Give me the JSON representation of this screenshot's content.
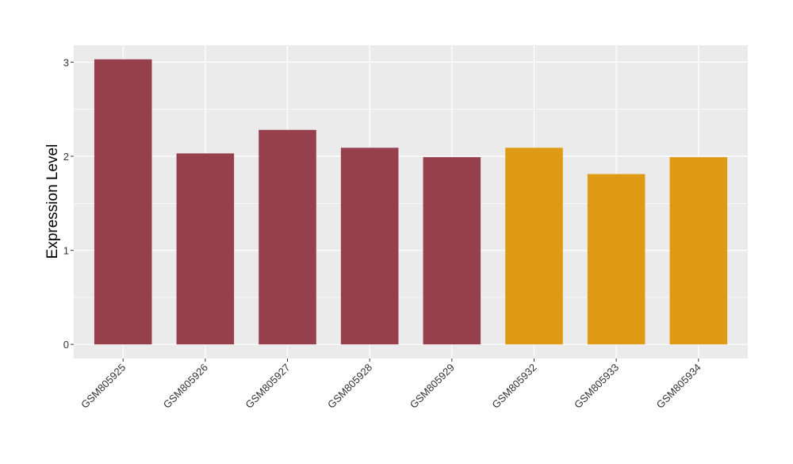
{
  "chart_data": {
    "type": "bar",
    "title": "",
    "xlabel": "",
    "ylabel": "Expression Level",
    "categories": [
      "GSM805925",
      "GSM805926",
      "GSM805927",
      "GSM805928",
      "GSM805929",
      "GSM805932",
      "GSM805933",
      "GSM805934"
    ],
    "values": [
      3.03,
      2.03,
      2.28,
      2.09,
      1.99,
      2.09,
      1.81,
      1.99
    ],
    "bar_colors": [
      "#96404E",
      "#96404E",
      "#96404E",
      "#96404E",
      "#96404E",
      "#DE9A14",
      "#DE9A14",
      "#DE9A14"
    ],
    "y_ticks": [
      0,
      1,
      2,
      3
    ],
    "ylim": [
      -0.15,
      3.18
    ],
    "grid": true,
    "legend": "none",
    "panel_background": "#EBEBEB",
    "grid_color": "#FFFFFF"
  }
}
